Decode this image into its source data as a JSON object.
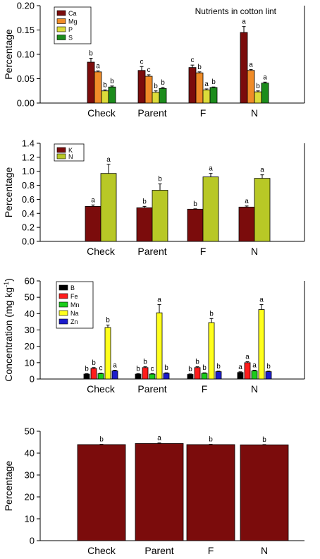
{
  "chart_data": [
    {
      "type": "bar",
      "title": "Nutrients in cotton lint",
      "ylabel": "Percentage",
      "categories": [
        "Check",
        "Parent",
        "F",
        "N"
      ],
      "ylim": [
        0,
        0.2
      ],
      "yticks": [
        "0.00",
        "0.05",
        "0.10",
        "0.15",
        "0.20"
      ],
      "legend_position": "top-left",
      "series": [
        {
          "name": "Ca",
          "color": "#7b0c0c",
          "values": [
            0.084,
            0.067,
            0.073,
            0.145
          ],
          "errors": [
            0.008,
            0.008,
            0.005,
            0.012
          ],
          "sig": [
            "b",
            "c",
            "c",
            "a"
          ]
        },
        {
          "name": "Mg",
          "color": "#f08c28",
          "values": [
            0.064,
            0.055,
            0.062,
            0.067
          ],
          "errors": [
            0.002,
            0.003,
            0.002,
            0.002
          ],
          "sig": [
            "a",
            "c",
            "b",
            "a"
          ]
        },
        {
          "name": "P",
          "color": "#dcdc3a",
          "values": [
            0.025,
            0.022,
            0.027,
            0.023
          ],
          "errors": [
            0.002,
            0.003,
            0.002,
            0.002
          ],
          "sig": [
            "b",
            "b",
            "a",
            "b"
          ]
        },
        {
          "name": "S",
          "color": "#1c8c1c",
          "values": [
            0.033,
            0.03,
            0.032,
            0.041
          ],
          "errors": [
            0.002,
            0.002,
            0.001,
            0.002
          ],
          "sig": [
            "b",
            "b",
            "b",
            "a"
          ]
        }
      ]
    },
    {
      "type": "bar",
      "ylabel": "Percentage",
      "categories": [
        "Check",
        "Parent",
        "F",
        "N"
      ],
      "ylim": [
        0,
        1.4
      ],
      "yticks": [
        "0.0",
        "0.2",
        "0.4",
        "0.6",
        "0.8",
        "1.0",
        "1.2",
        "1.4"
      ],
      "legend_position": "top-left",
      "series": [
        {
          "name": "K",
          "color": "#7b0c0c",
          "values": [
            0.5,
            0.48,
            0.46,
            0.49
          ],
          "errors": [
            0.02,
            0.02,
            0.005,
            0.015
          ],
          "sig": [
            "a",
            "b",
            "b",
            "a"
          ]
        },
        {
          "name": "N",
          "color": "#b8c826",
          "values": [
            0.97,
            0.73,
            0.92,
            0.9
          ],
          "errors": [
            0.13,
            0.09,
            0.05,
            0.05
          ],
          "sig": [
            "a",
            "b",
            "a",
            "a"
          ]
        }
      ]
    },
    {
      "type": "bar",
      "ylabel": "Concentration (mg kg",
      "ylabel_sup": "-1",
      "ylabel_end": ")",
      "categories": [
        "Check",
        "Parent",
        "F",
        "N"
      ],
      "ylim": [
        0,
        60
      ],
      "yticks": [
        "0",
        "10",
        "20",
        "30",
        "40",
        "50",
        "60"
      ],
      "legend_position": "top-left",
      "series": [
        {
          "name": "B",
          "color": "#000000",
          "values": [
            3.0,
            3.0,
            2.8,
            4.0
          ],
          "errors": [
            0.3,
            0.3,
            0.3,
            0.4
          ],
          "sig": [
            "b",
            "b",
            "b",
            "a"
          ]
        },
        {
          "name": "Fe",
          "color": "#ff1c1c",
          "values": [
            6.5,
            7.0,
            7.0,
            10.0
          ],
          "errors": [
            0.5,
            0.5,
            0.5,
            0.6
          ],
          "sig": [
            "b",
            "b",
            "b",
            "a"
          ]
        },
        {
          "name": "Mn",
          "color": "#1ccc1c",
          "values": [
            3.3,
            3.0,
            3.5,
            5.0
          ],
          "errors": [
            0.3,
            0.3,
            0.3,
            0.4
          ],
          "sig": [
            "c",
            "c",
            "b",
            "a"
          ]
        },
        {
          "name": "Na",
          "color": "#ffff1c",
          "values": [
            31.5,
            40.5,
            34.5,
            42.5
          ],
          "errors": [
            1.5,
            5.0,
            2.5,
            3.0
          ],
          "sig": [
            "b",
            "a",
            "b",
            "a"
          ]
        },
        {
          "name": "Zn",
          "color": "#1c1ccc",
          "values": [
            5.0,
            3.5,
            4.5,
            4.5
          ],
          "errors": [
            0.4,
            0.3,
            0.3,
            0.3
          ],
          "sig": [
            "a",
            "b",
            "b",
            "b"
          ]
        }
      ]
    },
    {
      "type": "bar",
      "ylabel": "Percentage",
      "categories": [
        "Check",
        "Parent",
        "F",
        "N"
      ],
      "ylim": [
        0,
        50
      ],
      "yticks": [
        "0",
        "10",
        "20",
        "30",
        "40",
        "50"
      ],
      "series": [
        {
          "name": "",
          "color": "#7b0c0c",
          "values": [
            43.9,
            44.4,
            43.9,
            43.8
          ],
          "errors": [
            0.1,
            0.3,
            0.1,
            0.1
          ],
          "sig": [
            "b",
            "a",
            "b",
            "b"
          ]
        }
      ]
    }
  ]
}
